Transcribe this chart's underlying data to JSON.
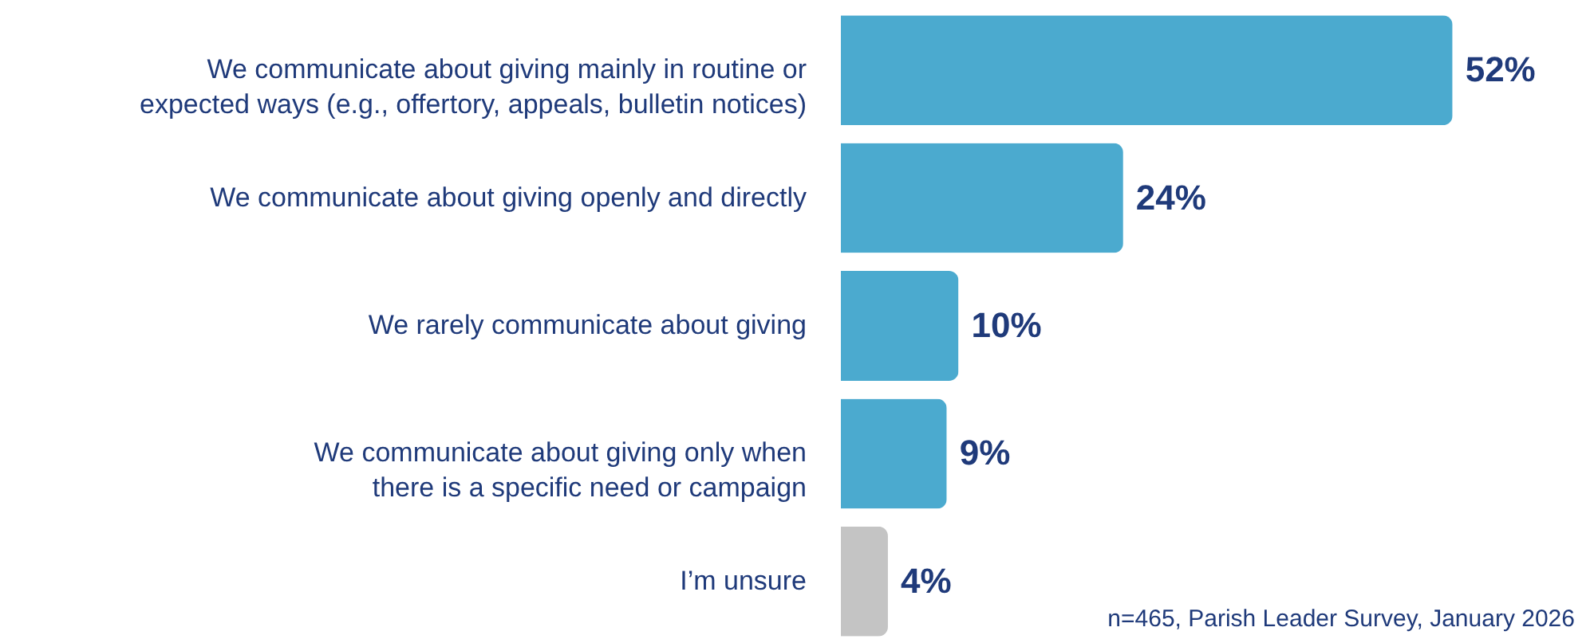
{
  "chart_data": {
    "type": "bar",
    "orientation": "horizontal",
    "categories": [
      "We communicate about giving mainly in routine or\nexpected ways (e.g., offertory, appeals, bulletin notices)",
      "We communicate about giving openly and directly",
      "We rarely communicate about giving",
      "We communicate about giving only when\nthere is a specific need or campaign",
      "I’m unsure"
    ],
    "values": [
      52,
      24,
      10,
      9,
      4
    ],
    "colors": [
      "#4baacf",
      "#4baacf",
      "#4baacf",
      "#4baacf",
      "#c4c4c4"
    ],
    "value_labels": [
      "52%",
      "24%",
      "10%",
      "9%",
      "4%"
    ],
    "annotations": [
      "n=465, Parish Leader Survey, January 2026"
    ]
  }
}
